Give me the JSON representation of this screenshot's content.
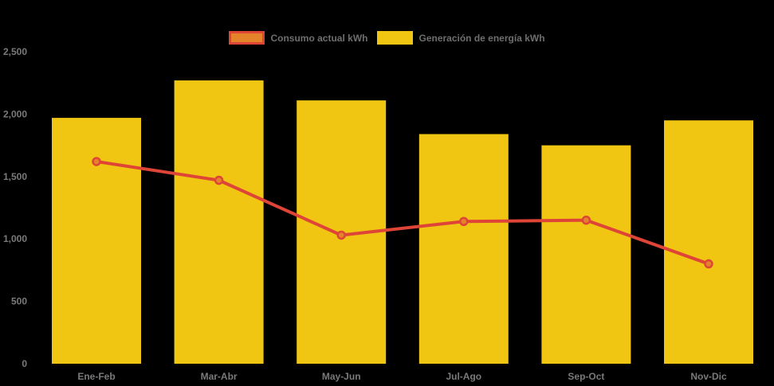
{
  "page": {
    "background": "#000000",
    "text_color": "#7A7A7A",
    "legend_text_color": "#6E6E6E"
  },
  "chart_data": {
    "type": "combo",
    "title": "",
    "xlabel": "",
    "ylabel": "",
    "categories": [
      "Ene-Feb",
      "Mar-Abr",
      "May-Jun",
      "Jul-Ago",
      "Sep-Oct",
      "Nov-Dic"
    ],
    "series": [
      {
        "name": "Consumo actual kWh",
        "type": "line",
        "color": "#DE4537",
        "marker_color": "#E5832B",
        "values": [
          1620,
          1470,
          1030,
          1140,
          1150,
          800
        ]
      },
      {
        "name": "Generación de energía kWh",
        "type": "bar",
        "color": "#F0C613",
        "values": [
          1970,
          2270,
          2110,
          1840,
          1750,
          1950
        ]
      }
    ],
    "ylim": [
      0,
      2500
    ],
    "y_ticks": [
      0,
      500,
      1000,
      1500,
      2000,
      2500
    ],
    "y_tick_labels": [
      "0",
      "500",
      "1,000",
      "1,500",
      "2,000",
      "2,500"
    ],
    "grid": false,
    "legend_position": "top-center",
    "background": "#000000",
    "text_color": "#7A7A7A"
  }
}
